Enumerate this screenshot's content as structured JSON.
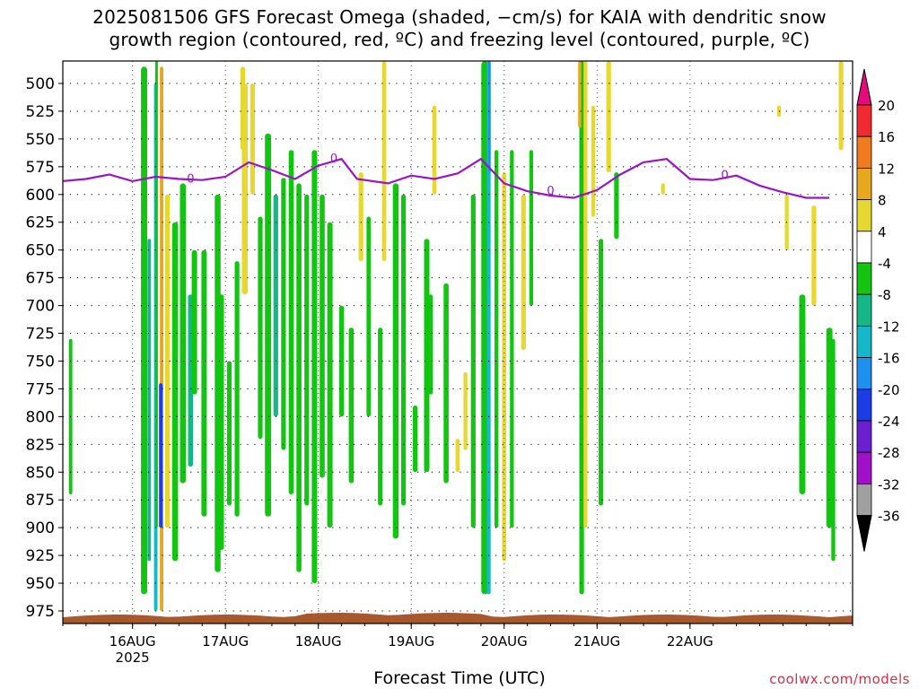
{
  "title_line1": "2025081506 GFS Forecast Omega (shaded, −cm/s) for KAIA with dendritic snow",
  "title_line2": "growth region (contoured, red, ºC) and freezing level (contoured, purple, ºC)",
  "xaxis_title": "Forecast Time (UTC)",
  "credit": "coolwx.com/models",
  "chart_data": {
    "type": "heatmap",
    "x_start_hours_offset": "2025-08-15 06Z",
    "x_ticks": [
      "16AUG",
      "17AUG",
      "18AUG",
      "19AUG",
      "20AUG",
      "21AUG",
      "22AUG"
    ],
    "x_tick_year": "2025",
    "y_ticks": [
      500,
      525,
      550,
      575,
      600,
      625,
      650,
      675,
      700,
      725,
      750,
      775,
      800,
      825,
      850,
      875,
      900,
      925,
      950,
      975
    ],
    "y_range_hpa": [
      475,
      985
    ],
    "colorbar": {
      "levels": [
        20,
        16,
        12,
        8,
        4,
        -4,
        -8,
        -12,
        -16,
        -20,
        -24,
        -28,
        -32,
        -36
      ],
      "colors": [
        "#e60a7a",
        "#f02a30",
        "#f07a1e",
        "#e8a81e",
        "#e6d830",
        "#ffffff",
        "#11c511",
        "#14b886",
        "#14b8c8",
        "#1e90f0",
        "#1c3ce8",
        "#6a1fd0",
        "#a010c8",
        "#a0a0a0",
        "#000000"
      ]
    },
    "freezing_level_label": "0",
    "freezing_level_hpa": [
      [
        0,
        588
      ],
      [
        6,
        586
      ],
      [
        12,
        582
      ],
      [
        18,
        588
      ],
      [
        24,
        584
      ],
      [
        30,
        586
      ],
      [
        36,
        587
      ],
      [
        42,
        584
      ],
      [
        48,
        571
      ],
      [
        54,
        578
      ],
      [
        60,
        586
      ],
      [
        66,
        574
      ],
      [
        72,
        568
      ],
      [
        76,
        586
      ],
      [
        84,
        590
      ],
      [
        90,
        583
      ],
      [
        96,
        586
      ],
      [
        102,
        581
      ],
      [
        108,
        568
      ],
      [
        114,
        590
      ],
      [
        120,
        597
      ],
      [
        126,
        601
      ],
      [
        132,
        603
      ],
      [
        138,
        596
      ],
      [
        144,
        582
      ],
      [
        150,
        571
      ],
      [
        156,
        568
      ],
      [
        162,
        586
      ],
      [
        168,
        587
      ],
      [
        174,
        583
      ],
      [
        180,
        592
      ],
      [
        186,
        598
      ],
      [
        192,
        603
      ],
      [
        198,
        603
      ]
    ]
  }
}
